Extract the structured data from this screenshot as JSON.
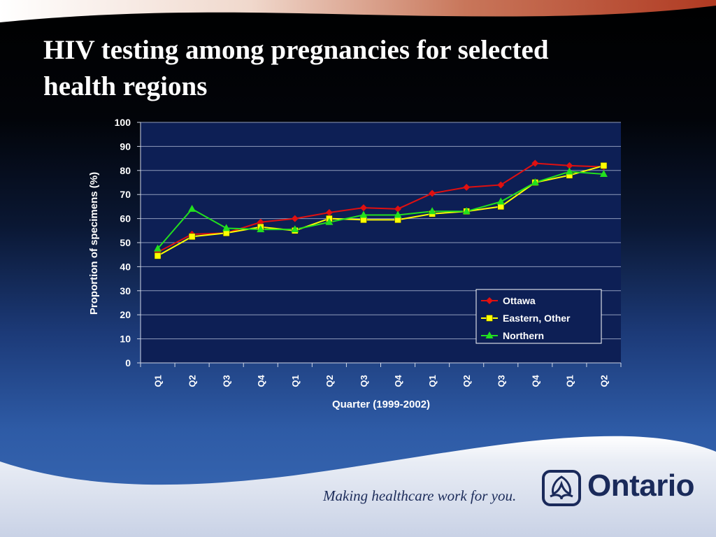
{
  "slide": {
    "title": "HIV testing among pregnancies for selected health regions",
    "tagline": "Making healthcare work for you.",
    "brand": "Ontario",
    "logo_icon": "ontario-trillium-icon"
  },
  "colors": {
    "plot_background": "#0d1f55",
    "ottawa": "#e01010",
    "eastern_other": "#ffff00",
    "northern": "#22e01e"
  },
  "chart_data": {
    "type": "line",
    "title": "",
    "xlabel": "Quarter (1999-2002)",
    "ylabel": "Proportion of specimens (%)",
    "ylim": [
      0,
      100
    ],
    "yticks": [
      0,
      10,
      20,
      30,
      40,
      50,
      60,
      70,
      80,
      90,
      100
    ],
    "categories": [
      "Q1",
      "Q2",
      "Q3",
      "Q4",
      "Q1",
      "Q2",
      "Q3",
      "Q4",
      "Q1",
      "Q2",
      "Q3",
      "Q4",
      "Q1",
      "Q2"
    ],
    "grid": true,
    "legend_position": "bottom-right",
    "series": [
      {
        "name": "Ottawa",
        "marker": "diamond",
        "color_key": "ottawa",
        "values": [
          46,
          53.5,
          54,
          58.5,
          60,
          62.5,
          64.5,
          64,
          70.5,
          73,
          74,
          83,
          82,
          81.5
        ]
      },
      {
        "name": "Eastern, Other",
        "marker": "square",
        "color_key": "eastern_other",
        "values": [
          44.5,
          52.5,
          54,
          56.5,
          55,
          60,
          59.5,
          59.5,
          62,
          63,
          65,
          75,
          78,
          82
        ]
      },
      {
        "name": "Northern",
        "marker": "triangle",
        "color_key": "northern",
        "values": [
          47.5,
          64,
          56,
          55.5,
          55.5,
          58.5,
          61.5,
          61.5,
          63,
          63,
          67,
          75,
          79.5,
          78.5
        ]
      }
    ]
  }
}
